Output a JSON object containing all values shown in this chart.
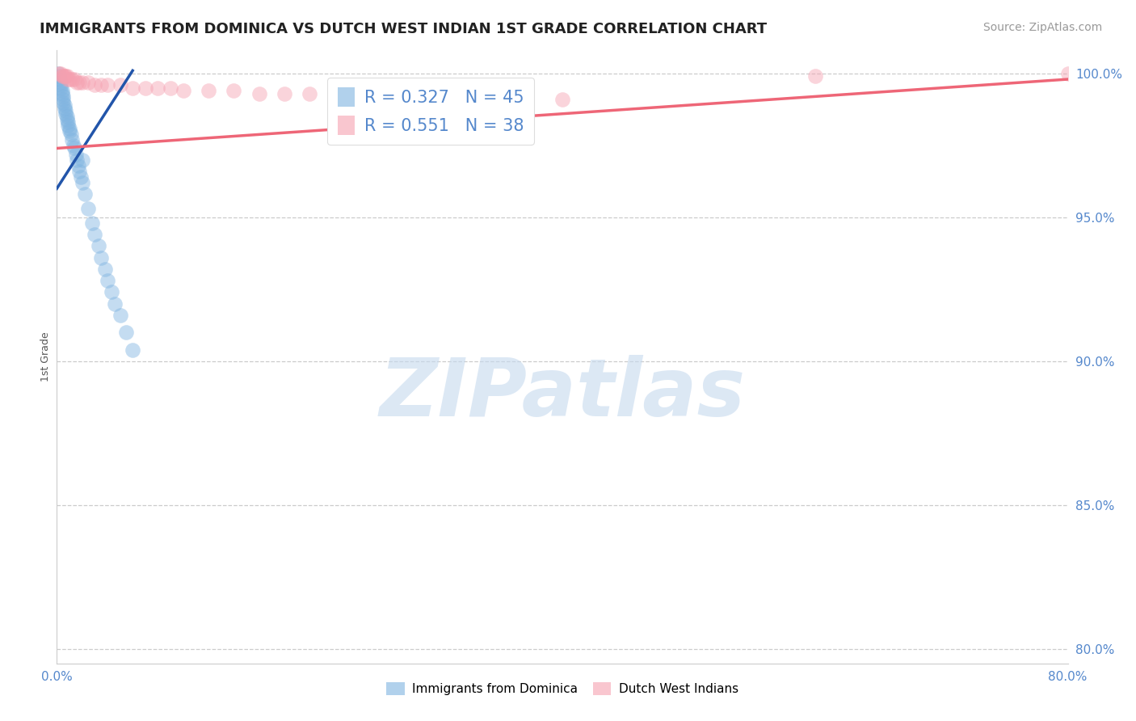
{
  "title": "IMMIGRANTS FROM DOMINICA VS DUTCH WEST INDIAN 1ST GRADE CORRELATION CHART",
  "source_text": "Source: ZipAtlas.com",
  "ylabel": "1st Grade",
  "xlim": [
    0.0,
    0.8
  ],
  "ylim": [
    0.795,
    1.008
  ],
  "yticks": [
    1.0,
    0.95,
    0.9,
    0.85,
    0.8
  ],
  "ytick_labels": [
    "100.0%",
    "95.0%",
    "90.0%",
    "85.0%",
    "80.0%"
  ],
  "blue_x": [
    0.001,
    0.002,
    0.002,
    0.003,
    0.003,
    0.003,
    0.004,
    0.004,
    0.005,
    0.005,
    0.005,
    0.006,
    0.006,
    0.007,
    0.007,
    0.008,
    0.008,
    0.009,
    0.009,
    0.01,
    0.01,
    0.011,
    0.012,
    0.013,
    0.014,
    0.015,
    0.016,
    0.017,
    0.018,
    0.019,
    0.02,
    0.022,
    0.025,
    0.028,
    0.03,
    0.033,
    0.035,
    0.038,
    0.04,
    0.043,
    0.046,
    0.05,
    0.055,
    0.06,
    0.02
  ],
  "blue_y": [
    1.0,
    0.999,
    0.998,
    0.997,
    0.996,
    0.995,
    0.994,
    0.993,
    0.992,
    0.991,
    0.99,
    0.989,
    0.988,
    0.987,
    0.986,
    0.985,
    0.984,
    0.983,
    0.982,
    0.981,
    0.98,
    0.979,
    0.977,
    0.975,
    0.974,
    0.972,
    0.97,
    0.968,
    0.966,
    0.964,
    0.962,
    0.958,
    0.953,
    0.948,
    0.944,
    0.94,
    0.936,
    0.932,
    0.928,
    0.924,
    0.92,
    0.916,
    0.91,
    0.904,
    0.97
  ],
  "pink_x": [
    0.002,
    0.003,
    0.004,
    0.005,
    0.006,
    0.007,
    0.008,
    0.009,
    0.01,
    0.012,
    0.014,
    0.016,
    0.018,
    0.02,
    0.025,
    0.03,
    0.035,
    0.04,
    0.05,
    0.06,
    0.07,
    0.08,
    0.09,
    0.1,
    0.12,
    0.14,
    0.16,
    0.18,
    0.2,
    0.22,
    0.25,
    0.28,
    0.31,
    0.34,
    0.37,
    0.4,
    0.6,
    0.8
  ],
  "pink_y": [
    1.0,
    1.0,
    0.999,
    0.999,
    0.999,
    0.999,
    0.999,
    0.998,
    0.998,
    0.998,
    0.998,
    0.997,
    0.997,
    0.997,
    0.997,
    0.996,
    0.996,
    0.996,
    0.996,
    0.995,
    0.995,
    0.995,
    0.995,
    0.994,
    0.994,
    0.994,
    0.993,
    0.993,
    0.993,
    0.993,
    0.992,
    0.992,
    0.992,
    0.991,
    0.991,
    0.991,
    0.999,
    1.0
  ],
  "blue_color": "#7EB3E0",
  "pink_color": "#F5A0B0",
  "blue_line_color": "#2255AA",
  "pink_line_color": "#EE6677",
  "blue_R": 0.327,
  "blue_N": 45,
  "pink_R": 0.551,
  "pink_N": 38,
  "watermark_text": "ZIPatlas",
  "watermark_color": "#C5D9EE",
  "background_color": "#FFFFFF",
  "tick_color": "#5588CC",
  "grid_color": "#CCCCCC",
  "title_fontsize": 13,
  "ylabel_fontsize": 9,
  "tick_fontsize": 11,
  "legend_fontsize": 15,
  "source_fontsize": 10,
  "scatter_size": 180,
  "scatter_alpha": 0.45,
  "blue_trend_x0": 0.0,
  "blue_trend_y0": 0.96,
  "blue_trend_x1": 0.06,
  "blue_trend_y1": 1.001,
  "pink_trend_x0": 0.0,
  "pink_trend_y0": 0.974,
  "pink_trend_x1": 0.8,
  "pink_trend_y1": 0.998
}
